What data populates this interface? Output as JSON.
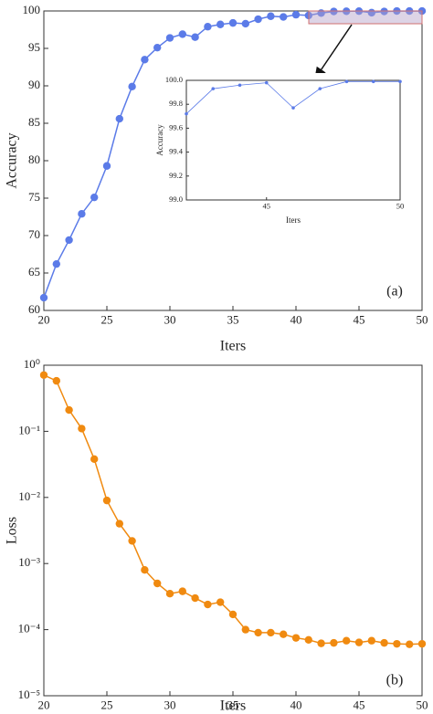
{
  "chart_data": [
    {
      "type": "line",
      "color": "#5b7be8",
      "x_label": "Iters",
      "y_label": "Accuracy",
      "annotation": "(a)",
      "x": [
        20,
        21,
        22,
        23,
        24,
        25,
        26,
        27,
        28,
        29,
        30,
        31,
        32,
        33,
        34,
        35,
        36,
        37,
        38,
        39,
        40,
        41,
        42,
        43,
        44,
        45,
        46,
        47,
        48,
        49,
        50
      ],
      "values": [
        61.7,
        66.2,
        69.4,
        72.9,
        75.1,
        79.3,
        85.6,
        89.9,
        93.5,
        95.1,
        96.4,
        96.9,
        96.5,
        97.9,
        98.2,
        98.4,
        98.3,
        98.9,
        99.3,
        99.2,
        99.5,
        99.4,
        99.72,
        99.93,
        99.96,
        99.98,
        99.77,
        99.93,
        99.99,
        99.99,
        99.99
      ],
      "xlim": [
        20,
        50
      ],
      "xticks": [
        20,
        25,
        30,
        35,
        40,
        45,
        50
      ],
      "ylim": [
        60,
        100
      ],
      "yticks": [
        60,
        65,
        70,
        75,
        80,
        85,
        90,
        95,
        100
      ]
    },
    {
      "type": "line",
      "color": "#5b7be8",
      "x_label": "Iters",
      "y_label": "Accuracy",
      "x": [
        42,
        43,
        44,
        45,
        46,
        47,
        48,
        49,
        50
      ],
      "values": [
        99.72,
        99.93,
        99.96,
        99.98,
        99.77,
        99.93,
        99.99,
        99.99,
        99.99
      ],
      "xlim": [
        42,
        50
      ],
      "xticks": [
        45,
        50
      ],
      "ylim": [
        99,
        100
      ],
      "yticks": [
        {
          "value": 99,
          "label": "99.0"
        },
        99.2,
        99.4,
        99.6,
        99.8,
        {
          "value": 100,
          "label": "100.0"
        }
      ]
    },
    {
      "type": "line",
      "color": "#f08a10",
      "x_label": "Iters",
      "y_label": "Loss",
      "annotation": "(b)",
      "log_scale": true,
      "x": [
        20,
        21,
        22,
        23,
        24,
        25,
        26,
        27,
        28,
        29,
        30,
        31,
        32,
        33,
        34,
        35,
        36,
        37,
        38,
        39,
        40,
        41,
        42,
        43,
        44,
        45,
        46,
        47,
        48,
        49,
        50
      ],
      "values": [
        0.71,
        0.58,
        0.21,
        0.11,
        0.038,
        0.009,
        0.004,
        0.0022,
        0.0008,
        0.0005,
        0.00035,
        0.00038,
        0.0003,
        0.00024,
        0.00026,
        0.00017,
        0.0001,
        9e-05,
        9e-05,
        8.5e-05,
        7.5e-05,
        7e-05,
        6.2e-05,
        6.3e-05,
        6.8e-05,
        6.4e-05,
        6.8e-05,
        6.3e-05,
        6.1e-05,
        6e-05,
        6.1e-05
      ],
      "xlim": [
        20,
        50
      ],
      "xticks": [
        20,
        25,
        30,
        35,
        40,
        45,
        50
      ],
      "ylim": [
        1e-05,
        1
      ],
      "yticks": [
        {
          "value": 1,
          "label": "10⁰"
        },
        {
          "value": 0.1,
          "label": "10⁻¹"
        },
        {
          "value": 0.01,
          "label": "10⁻²"
        },
        {
          "value": 0.001,
          "label": "10⁻³"
        },
        {
          "value": 0.0001,
          "label": "10⁻⁴"
        },
        {
          "value": 1e-05,
          "label": "10⁻⁵"
        }
      ]
    }
  ]
}
